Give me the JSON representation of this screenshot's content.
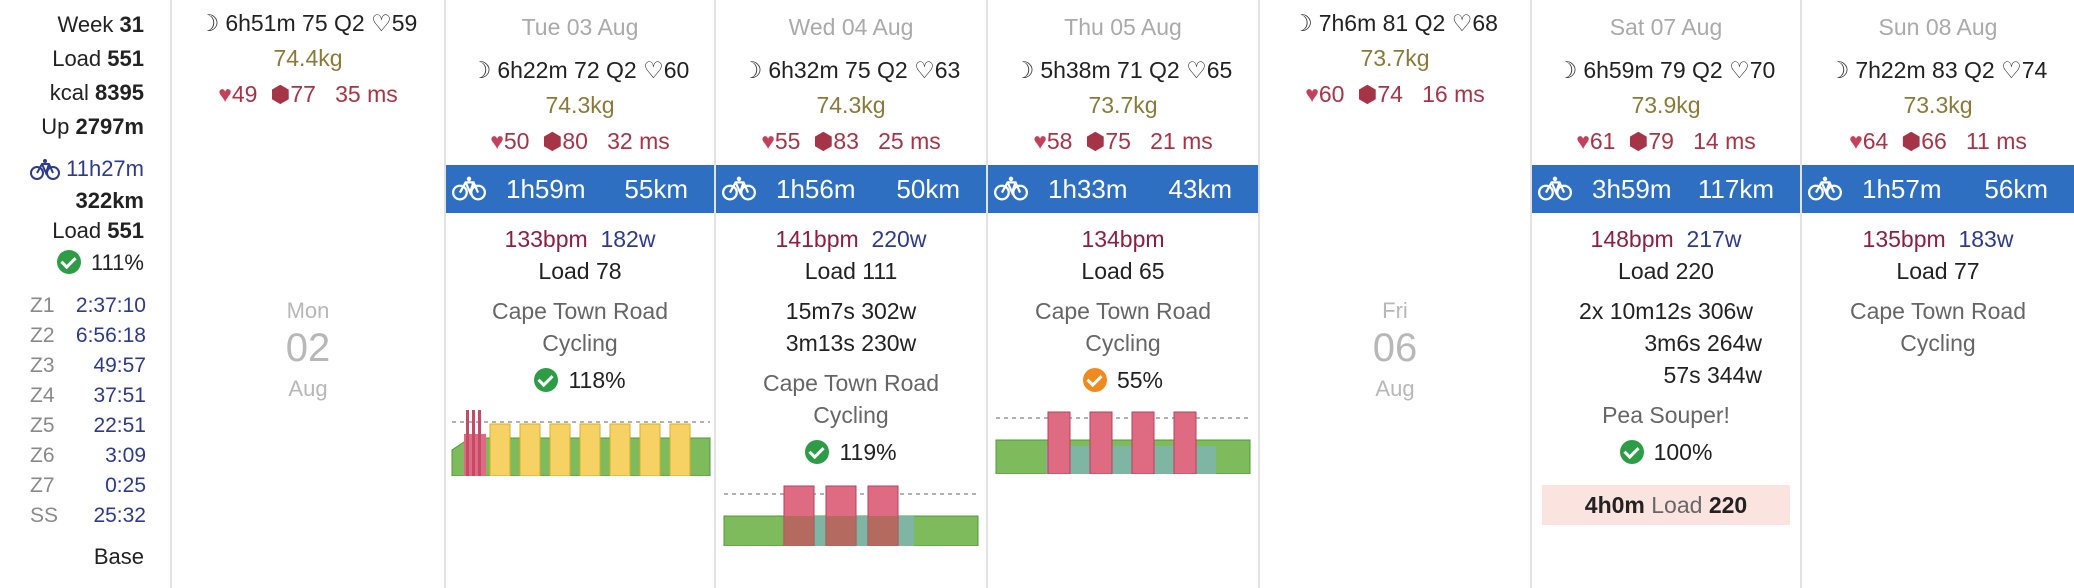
{
  "summary": {
    "week_label": "Week",
    "week_value": "31",
    "load_label": "Load",
    "load_value": "551",
    "kcal_label": "kcal",
    "kcal_value": "8395",
    "up_label": "Up",
    "up_value": "2797m",
    "ride_time": "11h27m",
    "ride_dist": "322km",
    "ride_load_label": "Load",
    "ride_load_value": "551",
    "ride_percent": "111%",
    "zones": [
      {
        "label": "Z1",
        "value": "2:37:10"
      },
      {
        "label": "Z2",
        "value": "6:56:18"
      },
      {
        "label": "Z3",
        "value": "49:57"
      },
      {
        "label": "Z4",
        "value": "37:51"
      },
      {
        "label": "Z5",
        "value": "22:51"
      },
      {
        "label": "Z6",
        "value": "3:09"
      },
      {
        "label": "Z7",
        "value": "0:25"
      },
      {
        "label": "SS",
        "value": "25:32"
      }
    ],
    "base_label": "Base"
  },
  "days": {
    "mon": {
      "sleep": "6h51m",
      "sleep_score": "75",
      "sleep_q": "Q2",
      "rest_hr": "59",
      "weight": "74.4kg",
      "hr": "49",
      "readiness": "77",
      "hrv": "35 ms",
      "dow": "Mon",
      "day": "02",
      "month": "Aug"
    },
    "tue": {
      "header": "Tue 03 Aug",
      "sleep": "6h22m",
      "sleep_score": "72",
      "sleep_q": "Q2",
      "rest_hr": "60",
      "weight": "74.3kg",
      "hr": "50",
      "readiness": "80",
      "hrv": "32 ms",
      "duration": "1h59m",
      "distance": "55km",
      "avg_hr": "133bpm",
      "avg_power": "182w",
      "load_label": "Load",
      "load_value": "78",
      "name_line1": "Cape Town Road",
      "name_line2": "Cycling",
      "percent": "118%"
    },
    "wed": {
      "header": "Wed 04 Aug",
      "sleep": "6h32m",
      "sleep_score": "75",
      "sleep_q": "Q2",
      "rest_hr": "63",
      "weight": "74.3kg",
      "hr": "55",
      "readiness": "83",
      "hrv": "25 ms",
      "duration": "1h56m",
      "distance": "50km",
      "avg_hr": "141bpm",
      "avg_power": "220w",
      "load_label": "Load",
      "load_value": "111",
      "interval1": "15m7s 302w",
      "interval2": "3m13s 230w",
      "name_line1": "Cape Town Road",
      "name_line2": "Cycling",
      "percent": "119%"
    },
    "thu": {
      "header": "Thu 05 Aug",
      "sleep": "5h38m",
      "sleep_score": "71",
      "sleep_q": "Q2",
      "rest_hr": "65",
      "weight": "73.7kg",
      "hr": "58",
      "readiness": "75",
      "hrv": "21 ms",
      "duration": "1h33m",
      "distance": "43km",
      "avg_hr": "134bpm",
      "load_label": "Load",
      "load_value": "65",
      "name_line1": "Cape Town Road",
      "name_line2": "Cycling",
      "percent": "55%"
    },
    "fri": {
      "sleep": "7h6m",
      "sleep_score": "81",
      "sleep_q": "Q2",
      "rest_hr": "68",
      "weight": "73.7kg",
      "hr": "60",
      "readiness": "74",
      "hrv": "16 ms",
      "dow": "Fri",
      "day": "06",
      "month": "Aug"
    },
    "sat": {
      "header": "Sat 07 Aug",
      "sleep": "6h59m",
      "sleep_score": "79",
      "sleep_q": "Q2",
      "rest_hr": "70",
      "weight": "73.9kg",
      "hr": "61",
      "readiness": "79",
      "hrv": "14 ms",
      "duration": "3h59m",
      "distance": "117km",
      "avg_hr": "148bpm",
      "avg_power": "217w",
      "load_label": "Load",
      "load_value": "220",
      "interval1": "2x 10m12s 306w",
      "interval2": "3m6s 264w",
      "interval3": "57s 344w",
      "name_line1": "Pea Souper!",
      "percent": "100%",
      "planned_time": "4h0m",
      "planned_load_label": "Load",
      "planned_load_value": "220"
    },
    "sun": {
      "header": "Sun 08 Aug",
      "sleep": "7h22m",
      "sleep_score": "83",
      "sleep_q": "Q2",
      "rest_hr": "74",
      "weight": "73.3kg",
      "hr": "64",
      "readiness": "66",
      "hrv": "11 ms",
      "duration": "1h57m",
      "distance": "56km",
      "avg_hr": "135bpm",
      "avg_power": "183w",
      "load_label": "Load",
      "load_value": "77",
      "name_line1": "Cape Town Road",
      "name_line2": "Cycling"
    }
  },
  "icons": {
    "sleep": "moon-icon",
    "rest_hr": "heart-outline-icon",
    "hr": "heart-icon",
    "readiness": "hexagon-icon",
    "activity": "bicycle-icon",
    "complete": "check-circle-icon"
  },
  "colors": {
    "activity_bar": "#2f6fc1",
    "check_ok": "#2e9c47",
    "check_partial": "#ef8a1f",
    "hr_text": "#a63447",
    "weight_text": "#8a7a3a",
    "zone_green": "#7dbb5c",
    "zone_yellow": "#f6d163",
    "zone_red": "#de6b82",
    "zone_teal": "#7fb6a3"
  }
}
